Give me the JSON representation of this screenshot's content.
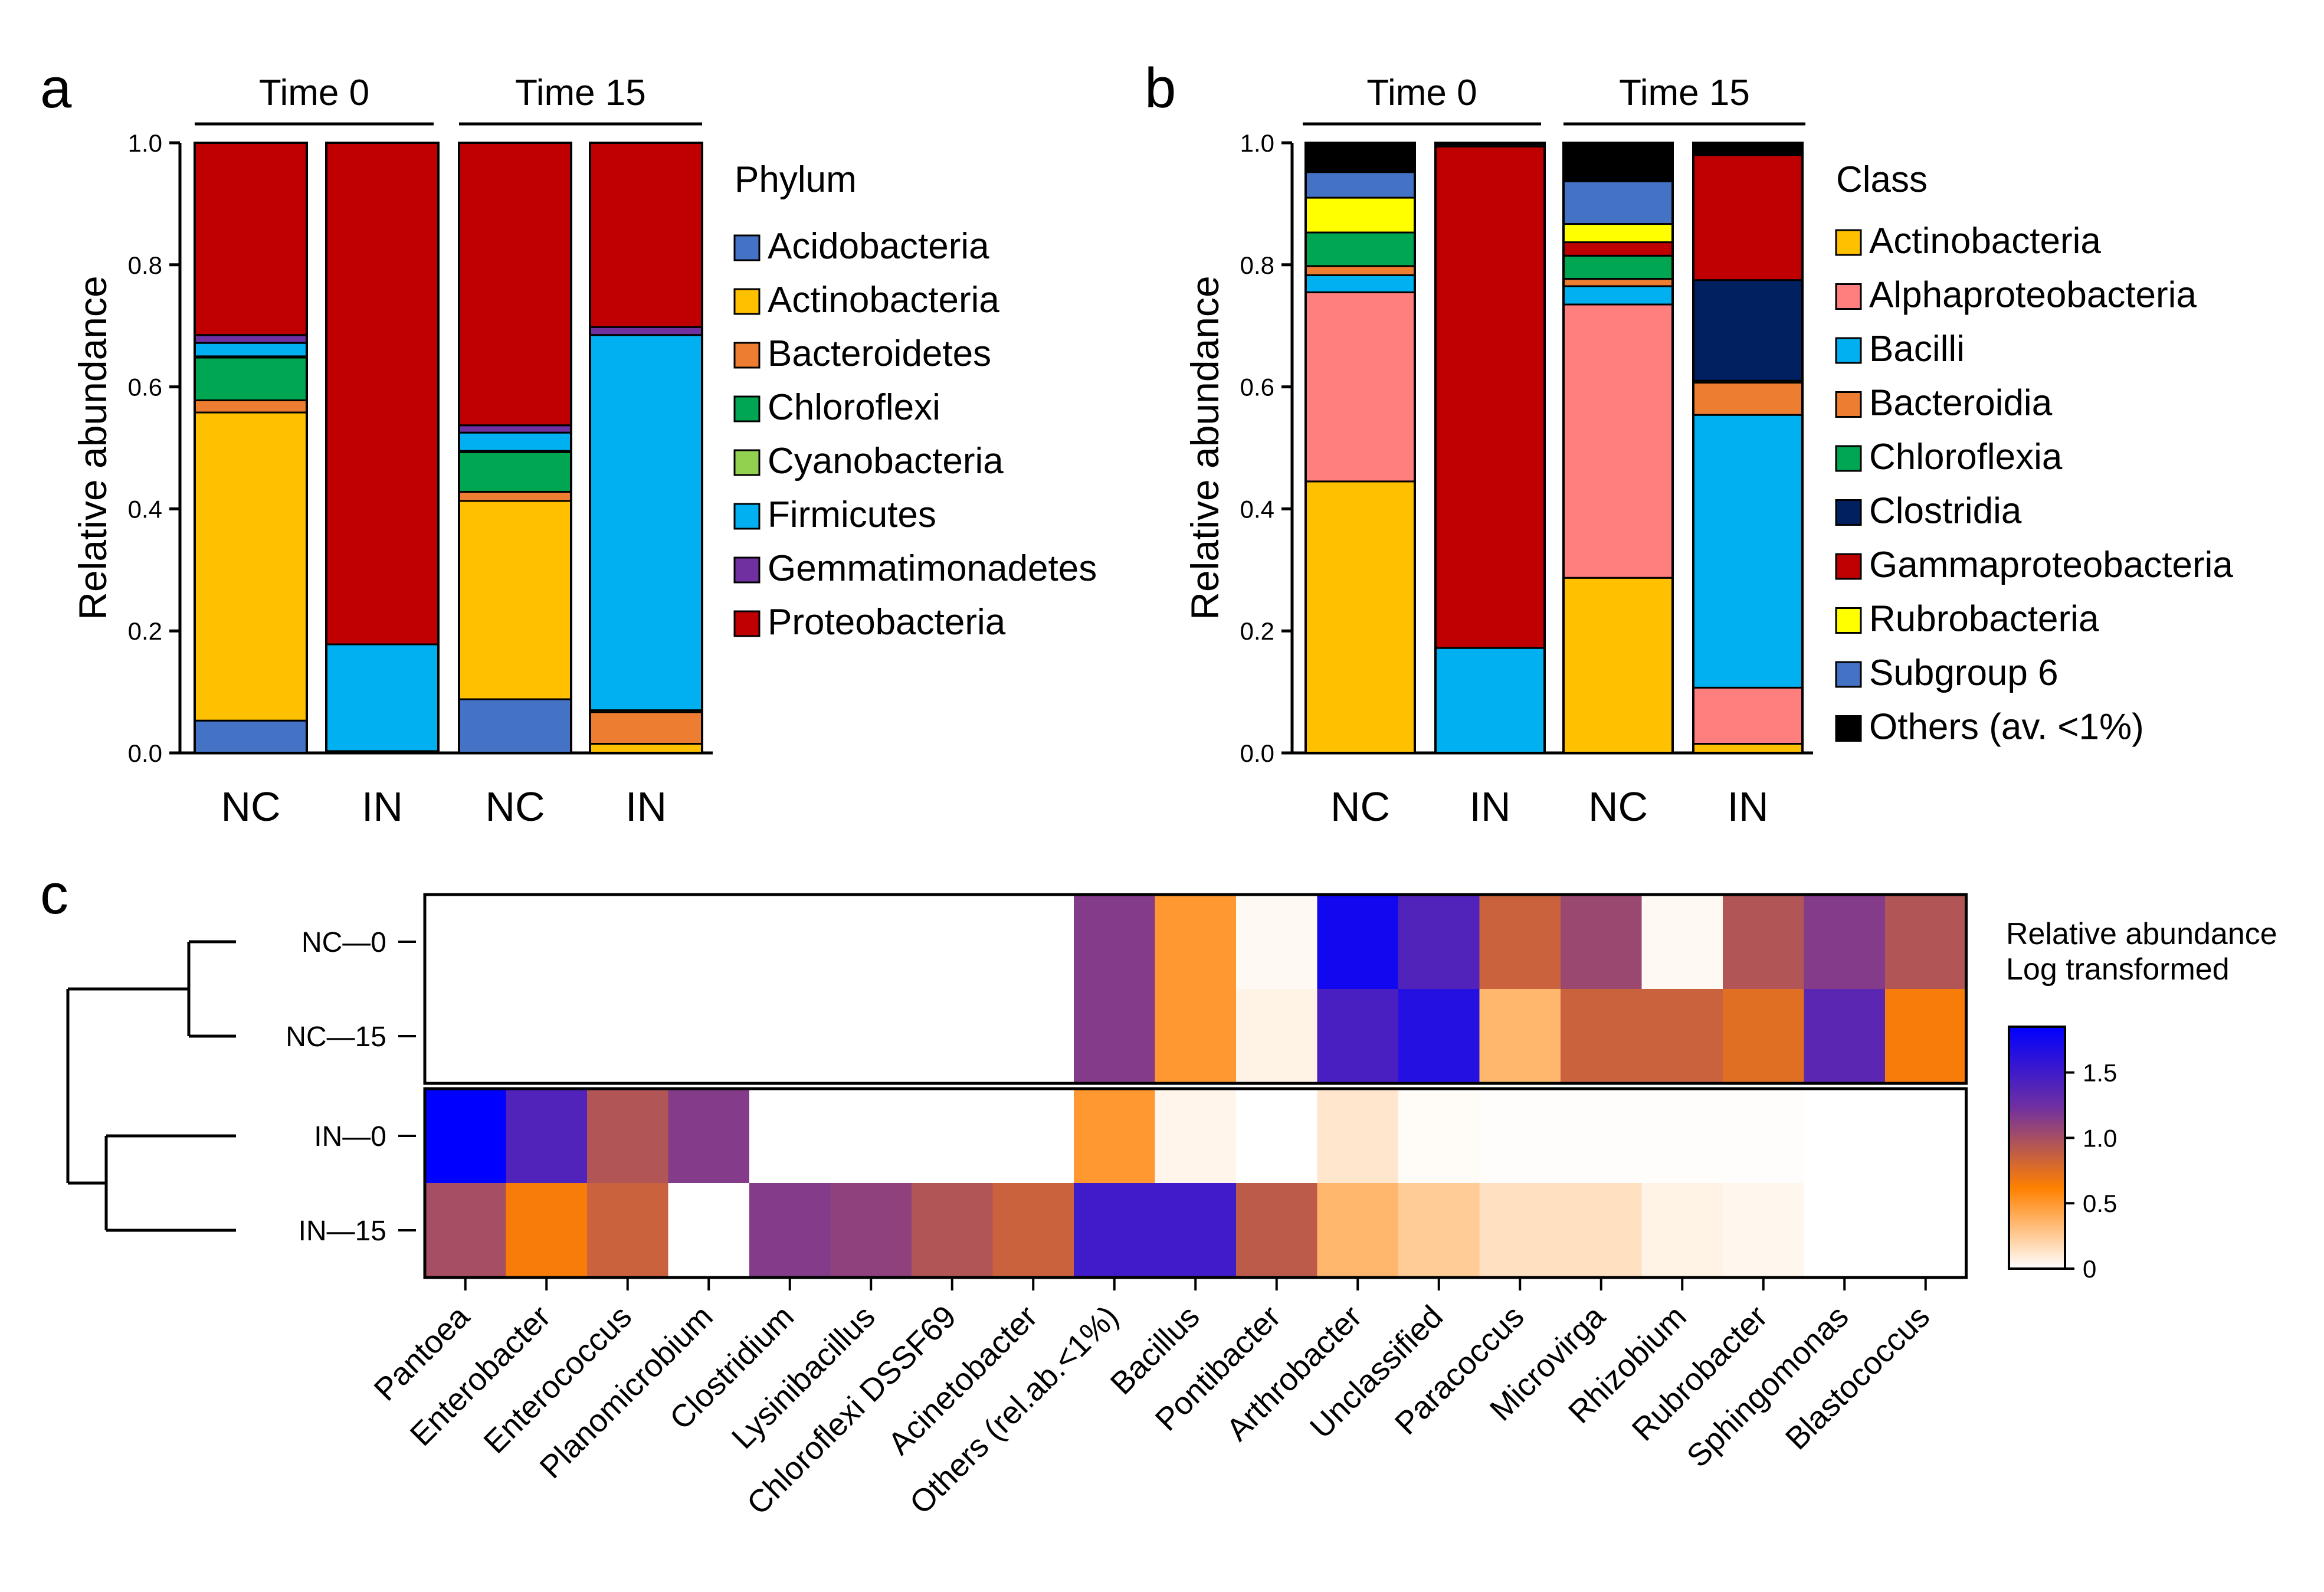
{
  "figure": {
    "panels": [
      "a",
      "b",
      "c"
    ]
  },
  "chart_data": [
    {
      "id": "a",
      "type": "bar",
      "stacked": true,
      "ylabel": "Relative abundance",
      "ylim": [
        0,
        1
      ],
      "yticks": [
        "0.0",
        "0.2",
        "0.4",
        "0.6",
        "0.8",
        "1.0"
      ],
      "groups": [
        "Time 0",
        "Time 15"
      ],
      "categories": [
        "NC",
        "IN",
        "NC",
        "IN"
      ],
      "legend_title": "Phylum",
      "legend_position": "right",
      "series": [
        {
          "name": "Acidobacteria",
          "color": "#4472C4",
          "values": [
            0.053,
            0.003,
            0.088,
            0.0
          ]
        },
        {
          "name": "Actinobacteria",
          "color": "#FFC000",
          "values": [
            0.505,
            0.0,
            0.325,
            0.015
          ]
        },
        {
          "name": "Bacteroidetes",
          "color": "#ED7D31",
          "values": [
            0.02,
            0.0,
            0.015,
            0.052
          ]
        },
        {
          "name": "Chloroflexi",
          "color": "#00A651",
          "values": [
            0.07,
            0.0,
            0.065,
            0.003
          ]
        },
        {
          "name": "Cyanobacteria",
          "color": "#92D050",
          "values": [
            0.002,
            0.0,
            0.002,
            0.0
          ]
        },
        {
          "name": "Firmicutes",
          "color": "#00B0F0",
          "values": [
            0.022,
            0.175,
            0.03,
            0.615
          ]
        },
        {
          "name": "Gemmatimonadetes",
          "color": "#7030A0",
          "values": [
            0.013,
            0.0,
            0.012,
            0.013
          ]
        },
        {
          "name": "Proteobacteria",
          "color": "#C00000",
          "values": [
            0.315,
            0.822,
            0.463,
            0.302
          ]
        }
      ]
    },
    {
      "id": "b",
      "type": "bar",
      "stacked": true,
      "ylabel": "Relative abundance",
      "ylim": [
        0,
        1
      ],
      "yticks": [
        "0.0",
        "0.2",
        "0.4",
        "0.6",
        "0.8",
        "1.0"
      ],
      "groups": [
        "Time 0",
        "Time 15"
      ],
      "categories": [
        "NC",
        "IN",
        "NC",
        "IN"
      ],
      "legend_title": "Class",
      "legend_position": "right",
      "series": [
        {
          "name": "Actinobacteria",
          "color": "#FFC000",
          "values": [
            0.445,
            0.0,
            0.287,
            0.015
          ]
        },
        {
          "name": "Alphaproteobacteria",
          "color": "#FF7F7F",
          "values": [
            0.31,
            0.0,
            0.448,
            0.092
          ]
        },
        {
          "name": "Bacilli",
          "color": "#00B0F0",
          "values": [
            0.028,
            0.172,
            0.03,
            0.447
          ]
        },
        {
          "name": "Bacteroidia",
          "color": "#ED7D31",
          "values": [
            0.015,
            0.0,
            0.012,
            0.053
          ]
        },
        {
          "name": "Chloroflexia",
          "color": "#00A651",
          "values": [
            0.055,
            0.0,
            0.038,
            0.003
          ]
        },
        {
          "name": "Clostridia",
          "color": "#002060",
          "values": [
            0.0,
            0.0,
            0.0,
            0.165
          ]
        },
        {
          "name": "Gammaproteobacteria",
          "color": "#C00000",
          "values": [
            0.0,
            0.822,
            0.022,
            0.205
          ]
        },
        {
          "name": "Rubrobacteria",
          "color": "#FFFF00",
          "values": [
            0.057,
            0.0,
            0.03,
            0.0
          ]
        },
        {
          "name": "Subgroup 6",
          "color": "#4472C4",
          "values": [
            0.042,
            0.003,
            0.07,
            0.0
          ]
        },
        {
          "name": "Others (av. <1%)",
          "color": "#000000",
          "values": [
            0.048,
            0.003,
            0.063,
            0.02
          ]
        }
      ]
    },
    {
      "id": "c",
      "type": "heatmap",
      "rows": [
        "NC—0",
        "NC—15",
        "IN—0",
        "IN—15"
      ],
      "columns": [
        "Pantoea",
        "Enterobacter",
        "Enterococcus",
        "Planomicrobium",
        "Clostridium",
        "Lysinibacillus",
        "Chloroflexi DSSF69",
        "Acinetobacter",
        "Others (rel.ab.<1%)",
        "Bacillus",
        "Pontibacter",
        "Arthrobacter",
        "Unclassified",
        "Paracoccus",
        "Microvirga",
        "Rhizobium",
        "Rubrobacter",
        "Sphingomonas",
        "Blastococcus"
      ],
      "values": [
        [
          0,
          0,
          0,
          0,
          0,
          0,
          0,
          0,
          1.15,
          0.5,
          0.03,
          1.75,
          1.4,
          0.85,
          1.05,
          0.03,
          0.95,
          1.15,
          0.95
        ],
        [
          0,
          0,
          0,
          0,
          0,
          0,
          0,
          0,
          1.15,
          0.5,
          0.06,
          1.45,
          1.65,
          0.35,
          0.85,
          0.85,
          0.75,
          1.35,
          0.65
        ],
        [
          1.85,
          1.4,
          0.95,
          1.15,
          0,
          0,
          0,
          0,
          0.5,
          0.05,
          0,
          0.12,
          0.02,
          0.01,
          0.01,
          0.01,
          0.01,
          0,
          0
        ],
        [
          1.0,
          0.65,
          0.85,
          0,
          1.15,
          1.1,
          0.95,
          0.85,
          1.5,
          1.5,
          0.9,
          0.35,
          0.25,
          0.15,
          0.15,
          0.06,
          0.04,
          0,
          0
        ]
      ],
      "colorbar": {
        "title": [
          "Relative abundance",
          "Log transformed"
        ],
        "range": [
          0,
          1.85
        ],
        "ticks": [
          "0",
          "0.5",
          "1.0",
          "1.5"
        ],
        "tick_values": [
          0,
          0.5,
          1.0,
          1.5
        ],
        "stops": [
          "#FFFFFF",
          "#FF8000",
          "#7030A0",
          "#0000FF"
        ]
      }
    }
  ]
}
